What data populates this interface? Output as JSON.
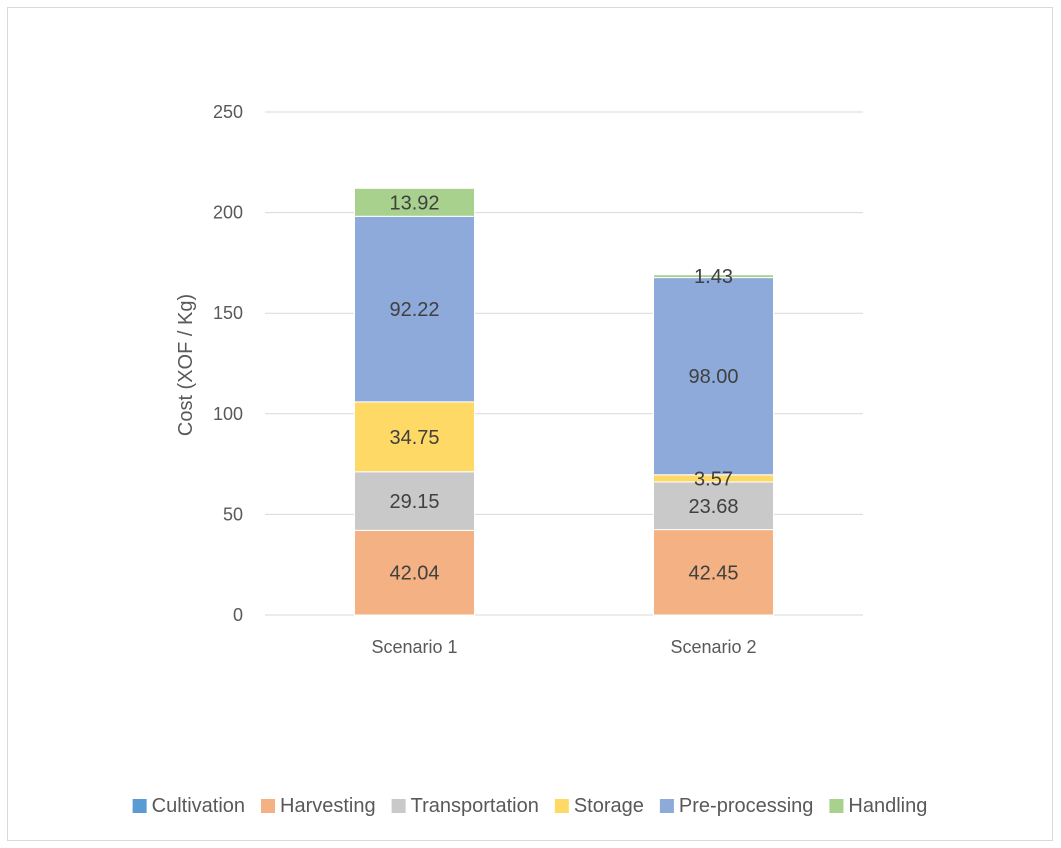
{
  "chart_data": {
    "type": "bar",
    "stacked": true,
    "title": "",
    "xlabel": "",
    "ylabel": "Cost (XOF / Kg)",
    "ylim": [
      0,
      250
    ],
    "yticks": [
      0,
      50,
      100,
      150,
      200,
      250
    ],
    "grid": true,
    "legend_position": "bottom",
    "categories": [
      "Scenario 1",
      "Scenario 2"
    ],
    "series": [
      {
        "name": "Cultivation",
        "color": "#5b9bd5",
        "values": [
          0,
          0
        ],
        "labels": [
          "",
          ""
        ]
      },
      {
        "name": "Harvesting",
        "color": "#f4b183",
        "values": [
          42.04,
          42.45
        ],
        "labels": [
          "42.04",
          "42.45"
        ]
      },
      {
        "name": "Transportation",
        "color": "#c9c9c9",
        "values": [
          29.15,
          23.68
        ],
        "labels": [
          "29.15",
          "23.68"
        ]
      },
      {
        "name": "Storage",
        "color": "#ffd966",
        "values": [
          34.75,
          3.57
        ],
        "labels": [
          "34.75",
          "3.57"
        ]
      },
      {
        "name": "Pre-processing",
        "color": "#8eaadb",
        "values": [
          92.22,
          98.0
        ],
        "labels": [
          "92.22",
          "98.00"
        ]
      },
      {
        "name": "Handling",
        "color": "#a9d18e",
        "values": [
          13.92,
          1.43
        ],
        "labels": [
          "13.92",
          "1.43"
        ]
      }
    ]
  }
}
